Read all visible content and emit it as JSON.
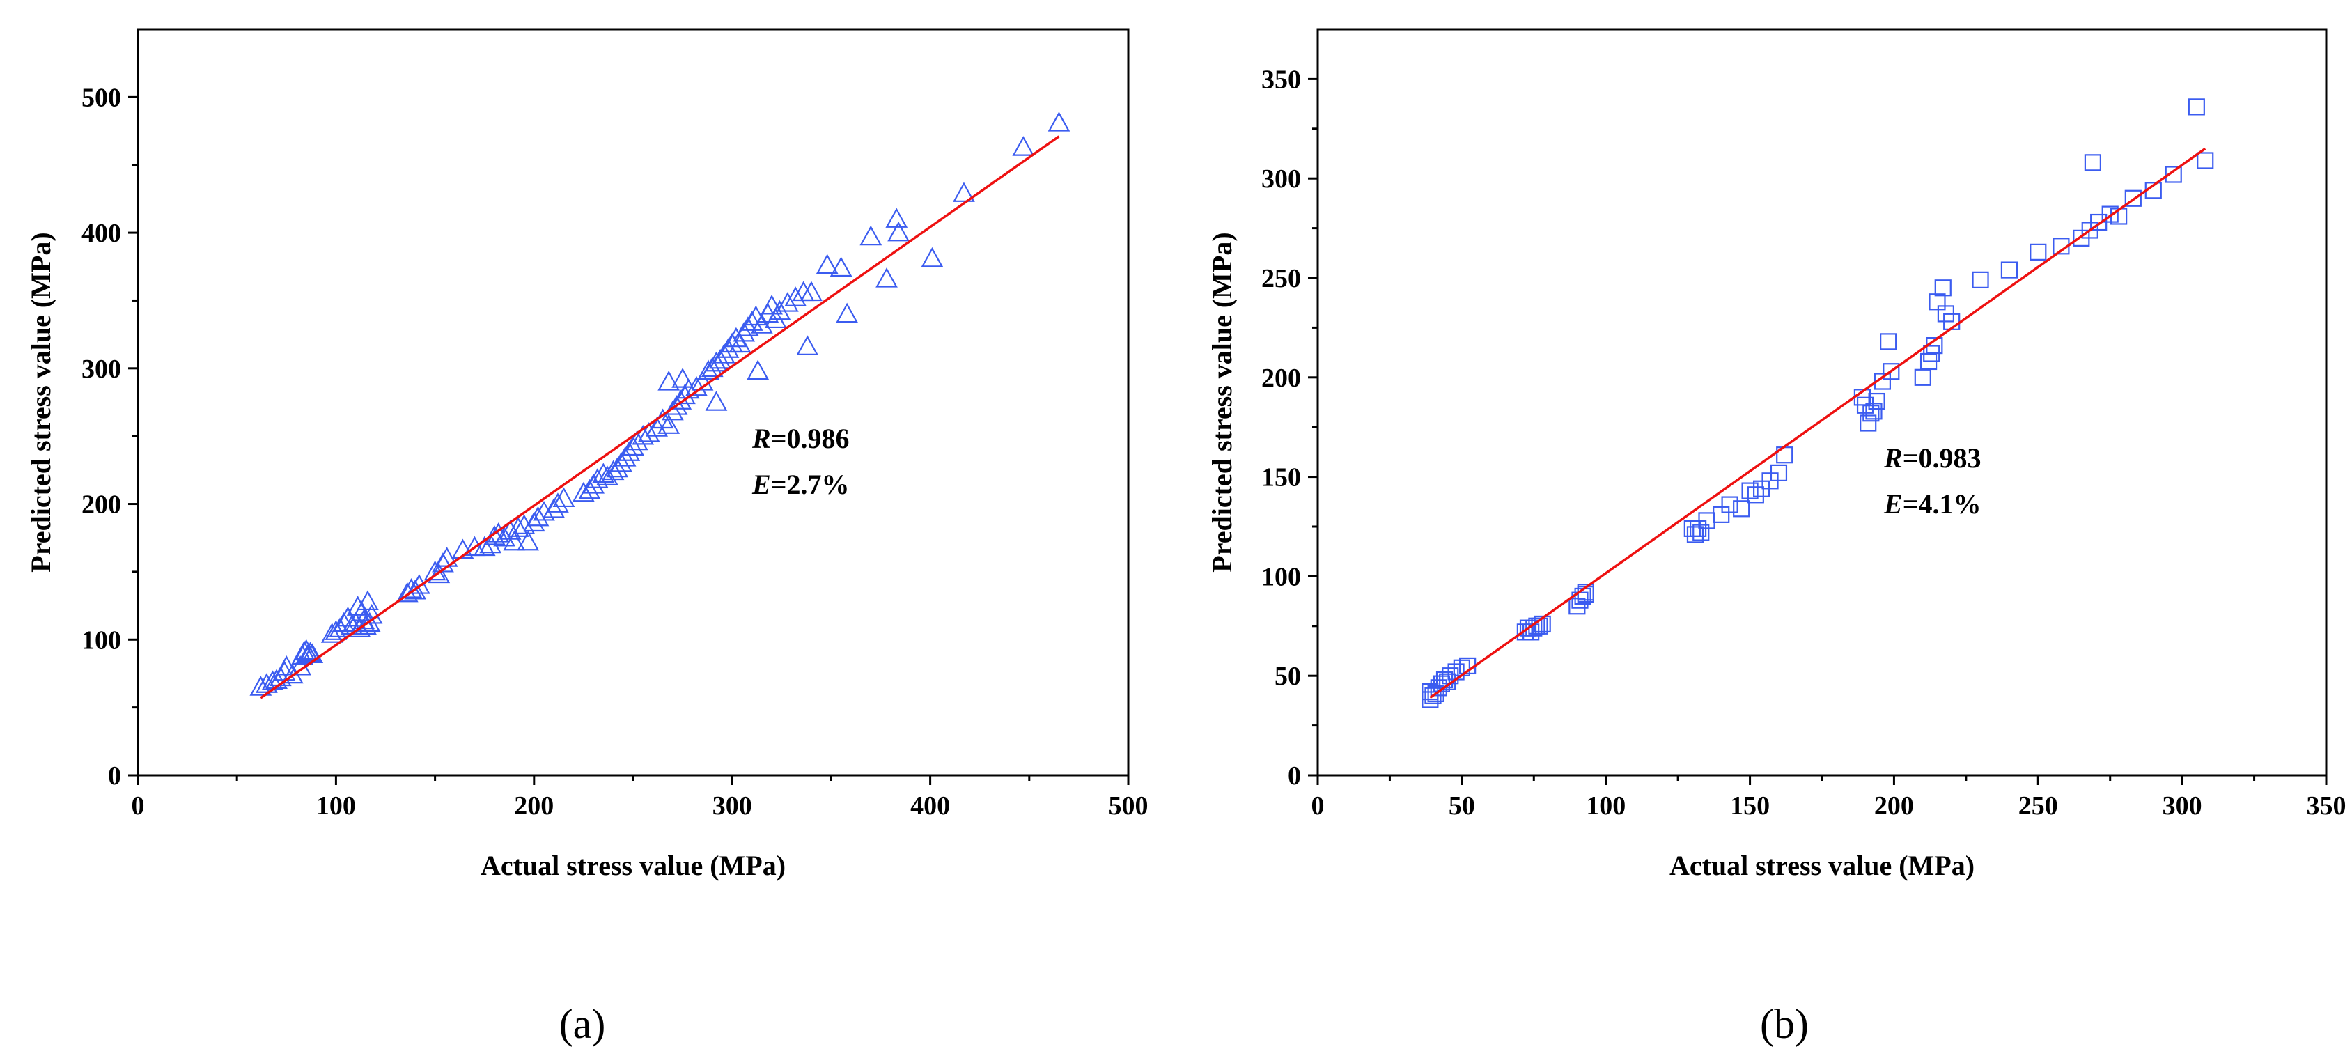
{
  "chart_data": [
    {
      "type": "scatter",
      "panel_label": "(a)",
      "title": "",
      "xlabel": "Actual stress value (MPa)",
      "ylabel": "Predicted stress value (MPa)",
      "xlim": [
        0,
        500
      ],
      "ylim": [
        0,
        550
      ],
      "xticks": [
        0,
        100,
        200,
        300,
        400,
        500
      ],
      "yticks": [
        0,
        100,
        200,
        300,
        400,
        500
      ],
      "grid": false,
      "marker": "triangle",
      "marker_color": "#3b5cf0",
      "fit_color": "#ee1111",
      "annotation": {
        "r_label": "R",
        "r_value": "=0.986",
        "e_label": "E",
        "e_value": "=2.7%"
      },
      "fit_line": {
        "x": [
          62,
          465
        ],
        "y": [
          57,
          471
        ]
      },
      "points": [
        [
          62,
          65
        ],
        [
          65,
          67
        ],
        [
          68,
          69
        ],
        [
          70,
          70
        ],
        [
          72,
          72
        ],
        [
          74,
          76
        ],
        [
          75,
          80
        ],
        [
          78,
          74
        ],
        [
          82,
          80
        ],
        [
          83,
          88
        ],
        [
          84,
          91
        ],
        [
          85,
          92
        ],
        [
          86,
          89
        ],
        [
          87,
          90
        ],
        [
          88,
          89
        ],
        [
          98,
          104
        ],
        [
          100,
          106
        ],
        [
          102,
          108
        ],
        [
          104,
          112
        ],
        [
          106,
          116
        ],
        [
          108,
          110
        ],
        [
          110,
          112
        ],
        [
          111,
          124
        ],
        [
          112,
          108
        ],
        [
          113,
          120
        ],
        [
          114,
          114
        ],
        [
          115,
          110
        ],
        [
          116,
          128
        ],
        [
          117,
          112
        ],
        [
          118,
          118
        ],
        [
          136,
          134
        ],
        [
          138,
          137
        ],
        [
          140,
          136
        ],
        [
          142,
          140
        ],
        [
          150,
          150
        ],
        [
          152,
          148
        ],
        [
          154,
          156
        ],
        [
          156,
          160
        ],
        [
          164,
          166
        ],
        [
          170,
          168
        ],
        [
          175,
          168
        ],
        [
          178,
          170
        ],
        [
          180,
          176
        ],
        [
          182,
          178
        ],
        [
          185,
          175
        ],
        [
          188,
          180
        ],
        [
          190,
          172
        ],
        [
          192,
          182
        ],
        [
          195,
          184
        ],
        [
          197,
          172
        ],
        [
          200,
          186
        ],
        [
          202,
          190
        ],
        [
          205,
          194
        ],
        [
          210,
          196
        ],
        [
          212,
          200
        ],
        [
          215,
          204
        ],
        [
          225,
          208
        ],
        [
          228,
          210
        ],
        [
          230,
          214
        ],
        [
          232,
          218
        ],
        [
          235,
          222
        ],
        [
          237,
          220
        ],
        [
          240,
          224
        ],
        [
          242,
          226
        ],
        [
          244,
          230
        ],
        [
          246,
          234
        ],
        [
          248,
          238
        ],
        [
          250,
          242
        ],
        [
          252,
          246
        ],
        [
          255,
          250
        ],
        [
          258,
          252
        ],
        [
          262,
          256
        ],
        [
          265,
          262
        ],
        [
          268,
          258
        ],
        [
          270,
          268
        ],
        [
          272,
          272
        ],
        [
          274,
          276
        ],
        [
          276,
          280
        ],
        [
          278,
          284
        ],
        [
          282,
          286
        ],
        [
          285,
          290
        ],
        [
          288,
          298
        ],
        [
          290,
          300
        ],
        [
          292,
          304
        ],
        [
          294,
          306
        ],
        [
          296,
          310
        ],
        [
          298,
          314
        ],
        [
          300,
          318
        ],
        [
          302,
          322
        ],
        [
          304,
          318
        ],
        [
          306,
          326
        ],
        [
          308,
          330
        ],
        [
          310,
          334
        ],
        [
          312,
          338
        ],
        [
          315,
          332
        ],
        [
          318,
          340
        ],
        [
          320,
          346
        ],
        [
          322,
          336
        ],
        [
          324,
          342
        ],
        [
          328,
          348
        ],
        [
          332,
          352
        ],
        [
          336,
          356
        ],
        [
          340,
          356
        ],
        [
          268,
          290
        ],
        [
          275,
          292
        ],
        [
          292,
          275
        ],
        [
          313,
          298
        ],
        [
          338,
          316
        ],
        [
          358,
          340
        ],
        [
          348,
          376
        ],
        [
          355,
          374
        ],
        [
          370,
          397
        ],
        [
          378,
          366
        ],
        [
          383,
          410
        ],
        [
          384,
          400
        ],
        [
          401,
          381
        ],
        [
          417,
          429
        ],
        [
          447,
          463
        ],
        [
          465,
          481
        ]
      ]
    },
    {
      "type": "scatter",
      "panel_label": "(b)",
      "title": "",
      "xlabel": "Actual stress value (MPa)",
      "ylabel": "Predicted stress value (MPa)",
      "xlim": [
        0,
        350
      ],
      "ylim": [
        0,
        375
      ],
      "xticks": [
        0,
        50,
        100,
        150,
        200,
        250,
        300,
        350
      ],
      "yticks": [
        0,
        50,
        100,
        150,
        200,
        250,
        300,
        350
      ],
      "grid": false,
      "marker": "square",
      "marker_color": "#3b5cf0",
      "fit_color": "#ee1111",
      "annotation": {
        "r_label": "R",
        "r_value": "=0.983",
        "e_label": "E",
        "e_value": "=4.1%"
      },
      "fit_line": {
        "x": [
          39,
          308
        ],
        "y": [
          39,
          315
        ]
      },
      "points": [
        [
          39,
          38
        ],
        [
          39,
          42
        ],
        [
          40,
          40
        ],
        [
          41,
          41
        ],
        [
          42,
          44
        ],
        [
          43,
          46
        ],
        [
          44,
          48
        ],
        [
          45,
          47
        ],
        [
          46,
          50
        ],
        [
          48,
          52
        ],
        [
          50,
          54
        ],
        [
          52,
          55
        ],
        [
          72,
          72
        ],
        [
          73,
          74
        ],
        [
          74,
          72
        ],
        [
          75,
          74
        ],
        [
          76,
          75
        ],
        [
          77,
          75
        ],
        [
          78,
          76
        ],
        [
          90,
          85
        ],
        [
          91,
          88
        ],
        [
          92,
          90
        ],
        [
          93,
          91
        ],
        [
          93,
          92
        ],
        [
          130,
          124
        ],
        [
          131,
          121
        ],
        [
          132,
          124
        ],
        [
          133,
          122
        ],
        [
          135,
          128
        ],
        [
          140,
          131
        ],
        [
          143,
          136
        ],
        [
          147,
          134
        ],
        [
          150,
          143
        ],
        [
          152,
          141
        ],
        [
          154,
          144
        ],
        [
          157,
          148
        ],
        [
          160,
          152
        ],
        [
          162,
          161
        ],
        [
          189,
          190
        ],
        [
          190,
          186
        ],
        [
          191,
          177
        ],
        [
          192,
          182
        ],
        [
          193,
          183
        ],
        [
          194,
          188
        ],
        [
          196,
          198
        ],
        [
          198,
          218
        ],
        [
          199,
          203
        ],
        [
          210,
          200
        ],
        [
          212,
          208
        ],
        [
          213,
          212
        ],
        [
          214,
          216
        ],
        [
          215,
          238
        ],
        [
          217,
          245
        ],
        [
          218,
          232
        ],
        [
          220,
          228
        ],
        [
          230,
          249
        ],
        [
          240,
          254
        ],
        [
          250,
          263
        ],
        [
          258,
          266
        ],
        [
          265,
          270
        ],
        [
          268,
          274
        ],
        [
          269,
          308
        ],
        [
          271,
          278
        ],
        [
          275,
          282
        ],
        [
          278,
          281
        ],
        [
          283,
          290
        ],
        [
          290,
          294
        ],
        [
          297,
          302
        ],
        [
          305,
          336
        ],
        [
          308,
          309
        ]
      ]
    }
  ]
}
